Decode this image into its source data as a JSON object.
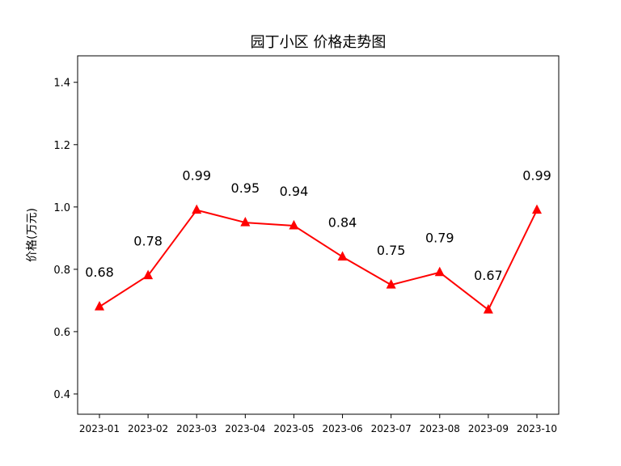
{
  "chart_data": {
    "type": "line",
    "title": "园丁小区 价格走势图",
    "xlabel": "",
    "ylabel": "价格(万元)",
    "categories": [
      "2023-01",
      "2023-02",
      "2023-03",
      "2023-04",
      "2023-05",
      "2023-06",
      "2023-07",
      "2023-08",
      "2023-09",
      "2023-10"
    ],
    "values": [
      0.68,
      0.78,
      0.99,
      0.95,
      0.94,
      0.84,
      0.75,
      0.79,
      0.67,
      0.99
    ],
    "data_labels": [
      "0.68",
      "0.78",
      "0.99",
      "0.95",
      "0.94",
      "0.84",
      "0.75",
      "0.79",
      "0.67",
      "0.99"
    ],
    "ylim": [
      0.335,
      1.485
    ],
    "yticks": [
      0.4,
      0.6,
      0.8,
      1.0,
      1.2,
      1.4
    ],
    "ytick_labels": [
      "0.4",
      "0.6",
      "0.8",
      "1.0",
      "1.2",
      "1.4"
    ],
    "line_color": "#ff0000",
    "marker": "triangle-up",
    "grid": false,
    "legend": "none"
  }
}
